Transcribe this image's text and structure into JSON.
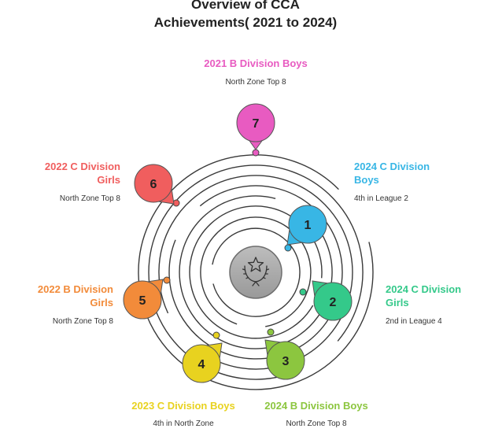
{
  "title": {
    "line1": "Overview of CCA",
    "line2": "Achievements( 2021 to 2024)"
  },
  "center_icon": "laurel-star-icon",
  "items": [
    {
      "number": "1",
      "label_line1": "2024 C Division",
      "label_line2": "Boys",
      "detail": "4th in League 2",
      "color": "#38B6E5"
    },
    {
      "number": "2",
      "label_line1": "2024 C Division",
      "label_line2": "Girls",
      "detail": "2nd in League 4",
      "color": "#34C98A"
    },
    {
      "number": "3",
      "label_line1": "2024 B Division Boys",
      "label_line2": "",
      "detail": "North Zone Top 8",
      "color": "#8CC63F"
    },
    {
      "number": "4",
      "label_line1": "2023 C Division Boys",
      "label_line2": "",
      "detail": "4th in North Zone",
      "color": "#E8D21F"
    },
    {
      "number": "5",
      "label_line1": "2022 B Division",
      "label_line2": "Girls",
      "detail": "North Zone Top 8",
      "color": "#F28B3A"
    },
    {
      "number": "6",
      "label_line1": "2022 C Division",
      "label_line2": "Girls",
      "detail": "North Zone Top 8",
      "color": "#F05E5E"
    },
    {
      "number": "7",
      "label_line1": "2021 B Division Boys",
      "label_line2": "",
      "detail": "North Zone Top 8",
      "color": "#E85BC1"
    }
  ]
}
